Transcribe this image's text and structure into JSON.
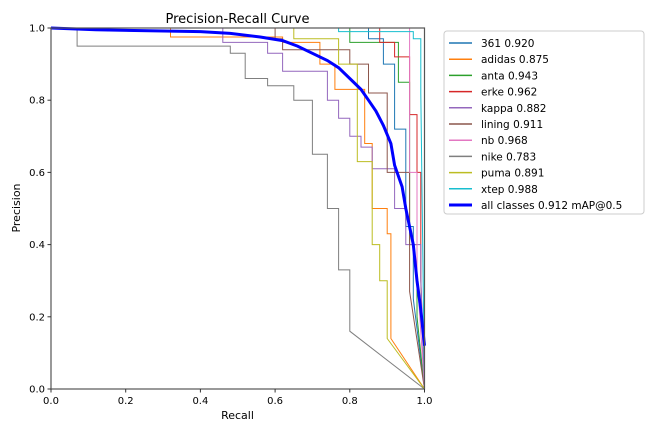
{
  "chart_data": {
    "type": "line",
    "title": "Precision-Recall Curve",
    "xlabel": "Recall",
    "ylabel": "Precision",
    "xlim": [
      0,
      1
    ],
    "ylim": [
      0,
      1
    ],
    "xticks": [
      "0.0",
      "0.2",
      "0.4",
      "0.6",
      "0.8",
      "1.0"
    ],
    "yticks": [
      "0.0",
      "0.2",
      "0.4",
      "0.6",
      "0.8",
      "1.0"
    ],
    "grid": false,
    "legend_position": "outside-top-right",
    "series": [
      {
        "name": "361 0.920",
        "color": "#1f77b4",
        "width": 1,
        "x": [
          0,
          0.85,
          0.85,
          0.89,
          0.89,
          0.92,
          0.92,
          0.95,
          0.95,
          0.97,
          0.97,
          1.0
        ],
        "y": [
          1.0,
          1.0,
          0.97,
          0.97,
          0.9,
          0.9,
          0.72,
          0.72,
          0.45,
          0.45,
          0.25,
          0.0
        ]
      },
      {
        "name": "adidas 0.875",
        "color": "#ff7f0e",
        "width": 1,
        "x": [
          0,
          0.32,
          0.32,
          0.62,
          0.62,
          0.72,
          0.72,
          0.76,
          0.76,
          0.84,
          0.84,
          0.86,
          0.86,
          0.9,
          0.9,
          0.91,
          0.91,
          1.0
        ],
        "y": [
          1.0,
          1.0,
          0.975,
          0.975,
          0.96,
          0.96,
          0.9,
          0.9,
          0.83,
          0.83,
          0.68,
          0.68,
          0.5,
          0.5,
          0.43,
          0.43,
          0.14,
          0.0
        ]
      },
      {
        "name": "anta 0.943",
        "color": "#2ca02c",
        "width": 1,
        "x": [
          0,
          0.8,
          0.8,
          0.93,
          0.93,
          0.96,
          0.96,
          0.98,
          0.98,
          1.0
        ],
        "y": [
          1.0,
          1.0,
          0.96,
          0.96,
          0.85,
          0.85,
          0.4,
          0.4,
          0.2,
          0.0
        ]
      },
      {
        "name": "erke 0.962",
        "color": "#d62728",
        "width": 1,
        "x": [
          0,
          0.88,
          0.88,
          0.92,
          0.92,
          0.96,
          0.96,
          0.98,
          0.98,
          0.99,
          0.99,
          1.0
        ],
        "y": [
          1.0,
          1.0,
          0.96,
          0.96,
          0.92,
          0.92,
          0.76,
          0.76,
          0.6,
          0.6,
          0.3,
          0.0
        ]
      },
      {
        "name": "kappa 0.882",
        "color": "#9467bd",
        "width": 1,
        "x": [
          0,
          0.46,
          0.46,
          0.58,
          0.58,
          0.62,
          0.62,
          0.74,
          0.74,
          0.77,
          0.77,
          0.8,
          0.8,
          0.83,
          0.83,
          0.86,
          0.86,
          0.92,
          0.92,
          0.95,
          0.95,
          0.99,
          0.99,
          1.0
        ],
        "y": [
          1.0,
          1.0,
          0.96,
          0.96,
          0.93,
          0.93,
          0.88,
          0.88,
          0.8,
          0.8,
          0.75,
          0.75,
          0.7,
          0.7,
          0.67,
          0.67,
          0.61,
          0.61,
          0.5,
          0.5,
          0.4,
          0.4,
          0.31,
          0.0
        ]
      },
      {
        "name": "lining 0.911",
        "color": "#8c564b",
        "width": 1,
        "x": [
          0,
          0.6,
          0.6,
          0.62,
          0.62,
          0.8,
          0.8,
          0.85,
          0.85,
          0.9,
          0.9,
          0.96,
          0.96,
          1.0
        ],
        "y": [
          1.0,
          1.0,
          0.97,
          0.97,
          0.94,
          0.94,
          0.9,
          0.9,
          0.82,
          0.82,
          0.6,
          0.6,
          0.27,
          0.0
        ]
      },
      {
        "name": "nb 0.968",
        "color": "#e377c2",
        "width": 1,
        "x": [
          0,
          0.96,
          0.96,
          0.98,
          0.98,
          1.0
        ],
        "y": [
          1.0,
          1.0,
          0.6,
          0.6,
          0.32,
          0.0
        ]
      },
      {
        "name": "nike 0.783",
        "color": "#7f7f7f",
        "width": 1,
        "x": [
          0,
          0.07,
          0.07,
          0.48,
          0.48,
          0.52,
          0.52,
          0.58,
          0.58,
          0.65,
          0.65,
          0.7,
          0.7,
          0.74,
          0.74,
          0.77,
          0.77,
          0.8,
          0.8,
          1.0
        ],
        "y": [
          1.0,
          1.0,
          0.95,
          0.95,
          0.93,
          0.93,
          0.86,
          0.86,
          0.84,
          0.84,
          0.8,
          0.8,
          0.65,
          0.65,
          0.5,
          0.5,
          0.33,
          0.33,
          0.16,
          0.0
        ]
      },
      {
        "name": "puma 0.891",
        "color": "#bcbd22",
        "width": 1,
        "x": [
          0,
          0.65,
          0.65,
          0.77,
          0.77,
          0.82,
          0.82,
          0.86,
          0.86,
          0.88,
          0.88,
          0.9,
          0.9,
          1.0
        ],
        "y": [
          1.0,
          1.0,
          0.97,
          0.97,
          0.9,
          0.9,
          0.63,
          0.63,
          0.4,
          0.4,
          0.3,
          0.3,
          0.14,
          0.0
        ]
      },
      {
        "name": "xtep 0.988",
        "color": "#17becf",
        "width": 1,
        "x": [
          0,
          0.77,
          0.77,
          0.97,
          0.97,
          0.99,
          0.99,
          1.0
        ],
        "y": [
          1.0,
          1.0,
          0.99,
          0.99,
          0.97,
          0.97,
          0.82,
          0.0
        ]
      },
      {
        "name": "all classes 0.912 mAP@0.5",
        "color": "#0000ff",
        "width": 3,
        "x": [
          0,
          0.12,
          0.4,
          0.48,
          0.56,
          0.62,
          0.66,
          0.7,
          0.74,
          0.77,
          0.8,
          0.83,
          0.85,
          0.87,
          0.89,
          0.91,
          0.92,
          0.94,
          0.95,
          0.97,
          0.98,
          0.99,
          1.0
        ],
        "y": [
          1.0,
          0.995,
          0.99,
          0.985,
          0.975,
          0.965,
          0.95,
          0.93,
          0.91,
          0.89,
          0.86,
          0.83,
          0.8,
          0.77,
          0.73,
          0.68,
          0.62,
          0.56,
          0.5,
          0.4,
          0.3,
          0.22,
          0.12
        ]
      }
    ]
  }
}
